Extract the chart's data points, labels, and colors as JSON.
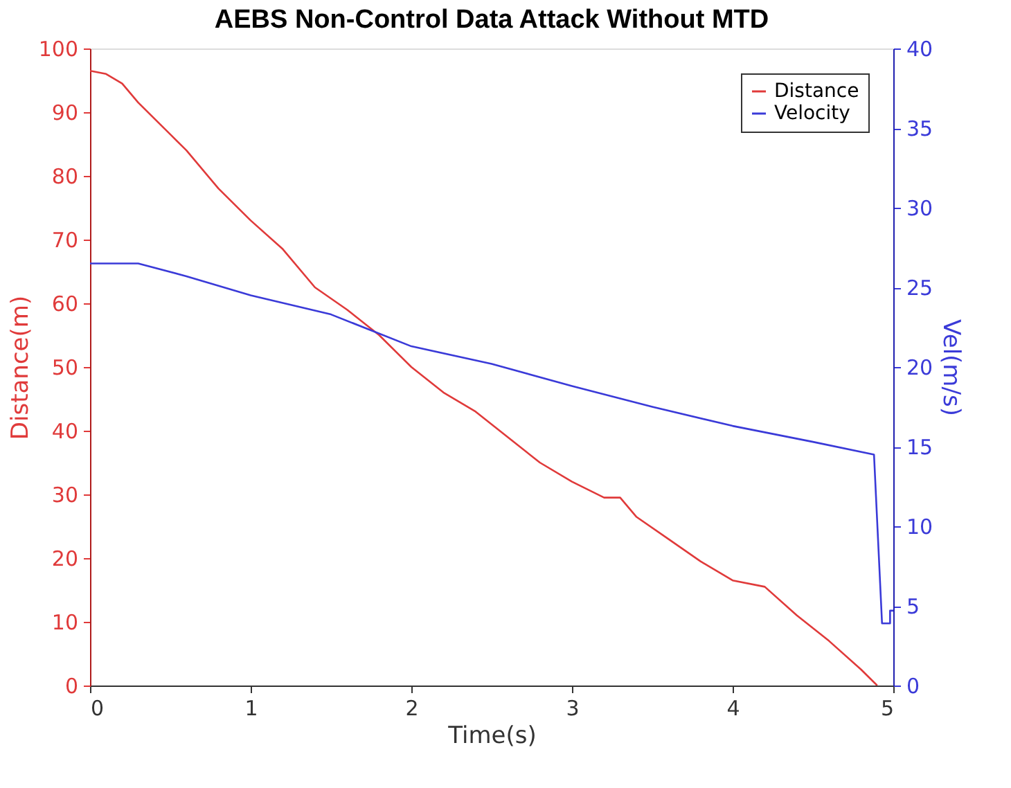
{
  "chart_data": {
    "type": "line",
    "title": "AEBS Non-Control Data Attack Without MTD",
    "xlabel": "Time(s)",
    "ylabel": "Distance(m)",
    "y2label": "Vel(m/s)",
    "xlim": [
      0,
      5
    ],
    "xticks": [
      0,
      1,
      2,
      3,
      4,
      5
    ],
    "ylim": [
      0,
      100
    ],
    "yticks": [
      0,
      10,
      20,
      30,
      40,
      50,
      60,
      70,
      80,
      90,
      100
    ],
    "y2lim": [
      0,
      40
    ],
    "y2ticks": [
      0,
      5,
      10,
      15,
      20,
      25,
      30,
      35,
      40
    ],
    "grid": false,
    "legend": "top right",
    "line_style": "solid",
    "marker": "none",
    "series": [
      {
        "name": "Distance",
        "color": "#e03a3a",
        "x": [
          0,
          0.1,
          0.2,
          0.3,
          0.4,
          0.5,
          0.6,
          0.8,
          1.0,
          1.2,
          1.4,
          1.6,
          1.8,
          2.0,
          2.2,
          2.4,
          2.6,
          2.8,
          3.0,
          3.2,
          3.3,
          3.4,
          3.6,
          3.8,
          4.0,
          4.2,
          4.4,
          4.6,
          4.8,
          4.9
        ],
        "values": [
          96.5,
          96,
          94.5,
          91.5,
          89,
          86.5,
          84,
          78,
          73,
          68.5,
          62.5,
          59,
          55,
          50,
          46,
          43,
          39,
          35,
          32,
          29.5,
          29.5,
          26.5,
          23,
          19.5,
          16.5,
          15.5,
          11,
          7,
          2.5,
          0
        ]
      },
      {
        "name": "Velocity",
        "color": "#3a3ad8",
        "axis": "y2",
        "x": [
          0,
          0.3,
          0.6,
          1.0,
          1.5,
          2.0,
          2.5,
          3.0,
          3.5,
          4.0,
          4.5,
          4.88,
          4.93,
          4.98,
          4.98,
          5.0
        ],
        "values": [
          26.5,
          26.5,
          25.7,
          24.5,
          23.3,
          21.3,
          20.2,
          18.8,
          17.5,
          16.3,
          15.3,
          14.5,
          3.9,
          3.9,
          4.7,
          4.7
        ]
      }
    ]
  }
}
